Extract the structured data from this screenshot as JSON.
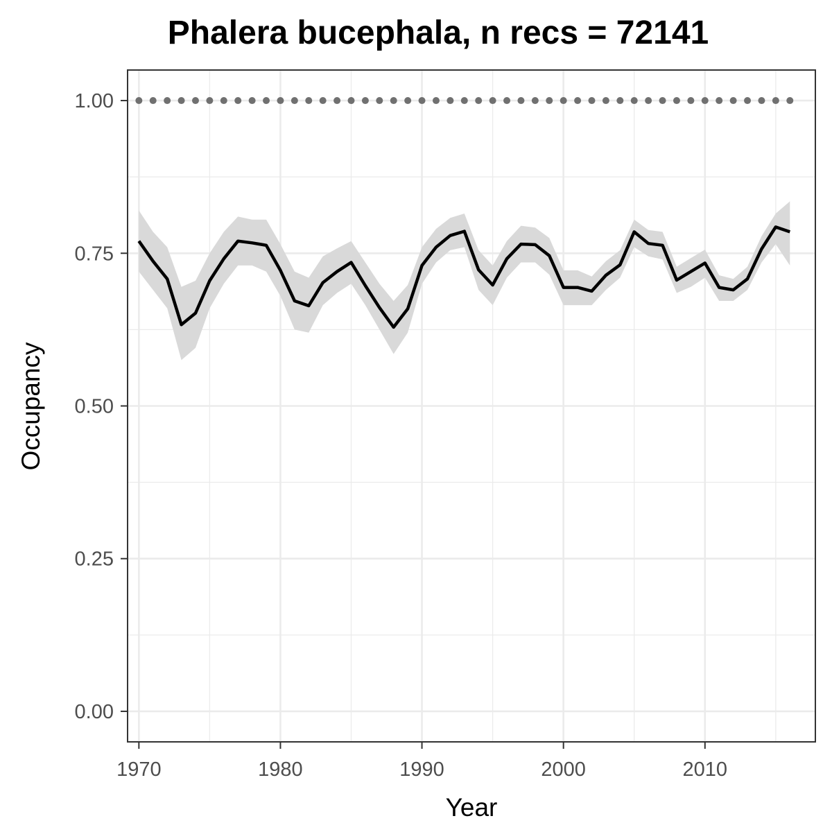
{
  "chart_data": {
    "type": "line",
    "title": "Phalera bucephala, n recs = 72141",
    "xlabel": "Year",
    "ylabel": "Occupancy",
    "xlim": [
      1969.2,
      2017.8
    ],
    "ylim": [
      -0.05,
      1.05
    ],
    "x_ticks": [
      1970,
      1980,
      1990,
      2000,
      2010
    ],
    "x_tick_labels": [
      "1970",
      "1980",
      "1990",
      "2000",
      "2010"
    ],
    "y_ticks": [
      0,
      0.25,
      0.5,
      0.75,
      1.0
    ],
    "y_tick_labels": [
      "0.00",
      "0.25",
      "0.50",
      "0.75",
      "1.00"
    ],
    "grid": true,
    "colors": {
      "line": "#000000",
      "ribbon": "#d9d9d9",
      "points": "#707070",
      "grid": "#ebebeb",
      "panel_border": "#333333"
    },
    "series": [
      {
        "type": "ribbon-line",
        "x": [
          1970,
          1971,
          1972,
          1973,
          1974,
          1975,
          1976,
          1977,
          1978,
          1979,
          1980,
          1981,
          1982,
          1983,
          1984,
          1985,
          1986,
          1987,
          1988,
          1989,
          1990,
          1991,
          1992,
          1993,
          1994,
          1995,
          1996,
          1997,
          1998,
          1999,
          2000,
          2001,
          2002,
          2003,
          2004,
          2005,
          2006,
          2007,
          2008,
          2009,
          2010,
          2011,
          2012,
          2013,
          2014,
          2015,
          2016
        ],
        "values": [
          0.77,
          0.737,
          0.708,
          0.633,
          0.652,
          0.705,
          0.741,
          0.77,
          0.767,
          0.763,
          0.722,
          0.672,
          0.664,
          0.702,
          0.72,
          0.735,
          0.697,
          0.661,
          0.629,
          0.659,
          0.73,
          0.76,
          0.779,
          0.786,
          0.723,
          0.698,
          0.741,
          0.765,
          0.764,
          0.746,
          0.694,
          0.694,
          0.688,
          0.714,
          0.731,
          0.785,
          0.766,
          0.763,
          0.706,
          0.72,
          0.734,
          0.694,
          0.69,
          0.708,
          0.757,
          0.793,
          0.785
        ],
        "lower": [
          0.72,
          0.69,
          0.66,
          0.575,
          0.595,
          0.66,
          0.7,
          0.73,
          0.73,
          0.72,
          0.68,
          0.625,
          0.62,
          0.665,
          0.685,
          0.7,
          0.665,
          0.625,
          0.585,
          0.62,
          0.7,
          0.735,
          0.755,
          0.76,
          0.69,
          0.665,
          0.71,
          0.735,
          0.735,
          0.715,
          0.665,
          0.665,
          0.665,
          0.69,
          0.71,
          0.76,
          0.745,
          0.74,
          0.685,
          0.695,
          0.71,
          0.672,
          0.672,
          0.69,
          0.735,
          0.765,
          0.73
        ],
        "upper": [
          0.82,
          0.785,
          0.76,
          0.695,
          0.705,
          0.75,
          0.785,
          0.81,
          0.805,
          0.805,
          0.765,
          0.72,
          0.71,
          0.745,
          0.758,
          0.77,
          0.735,
          0.7,
          0.672,
          0.698,
          0.76,
          0.79,
          0.808,
          0.815,
          0.755,
          0.73,
          0.77,
          0.795,
          0.792,
          0.775,
          0.722,
          0.722,
          0.712,
          0.737,
          0.755,
          0.805,
          0.788,
          0.785,
          0.728,
          0.742,
          0.756,
          0.714,
          0.708,
          0.728,
          0.778,
          0.815,
          0.835
        ]
      },
      {
        "type": "points",
        "x": [
          1970,
          1971,
          1972,
          1973,
          1974,
          1975,
          1976,
          1977,
          1978,
          1979,
          1980,
          1981,
          1982,
          1983,
          1984,
          1985,
          1986,
          1987,
          1988,
          1989,
          1990,
          1991,
          1992,
          1993,
          1994,
          1995,
          1996,
          1997,
          1998,
          1999,
          2000,
          2001,
          2002,
          2003,
          2004,
          2005,
          2006,
          2007,
          2008,
          2009,
          2010,
          2011,
          2012,
          2013,
          2014,
          2015,
          2016
        ],
        "values": [
          1,
          1,
          1,
          1,
          1,
          1,
          1,
          1,
          1,
          1,
          1,
          1,
          1,
          1,
          1,
          1,
          1,
          1,
          1,
          1,
          1,
          1,
          1,
          1,
          1,
          1,
          1,
          1,
          1,
          1,
          1,
          1,
          1,
          1,
          1,
          1,
          1,
          1,
          1,
          1,
          1,
          1,
          1,
          1,
          1,
          1,
          1
        ]
      }
    ]
  }
}
